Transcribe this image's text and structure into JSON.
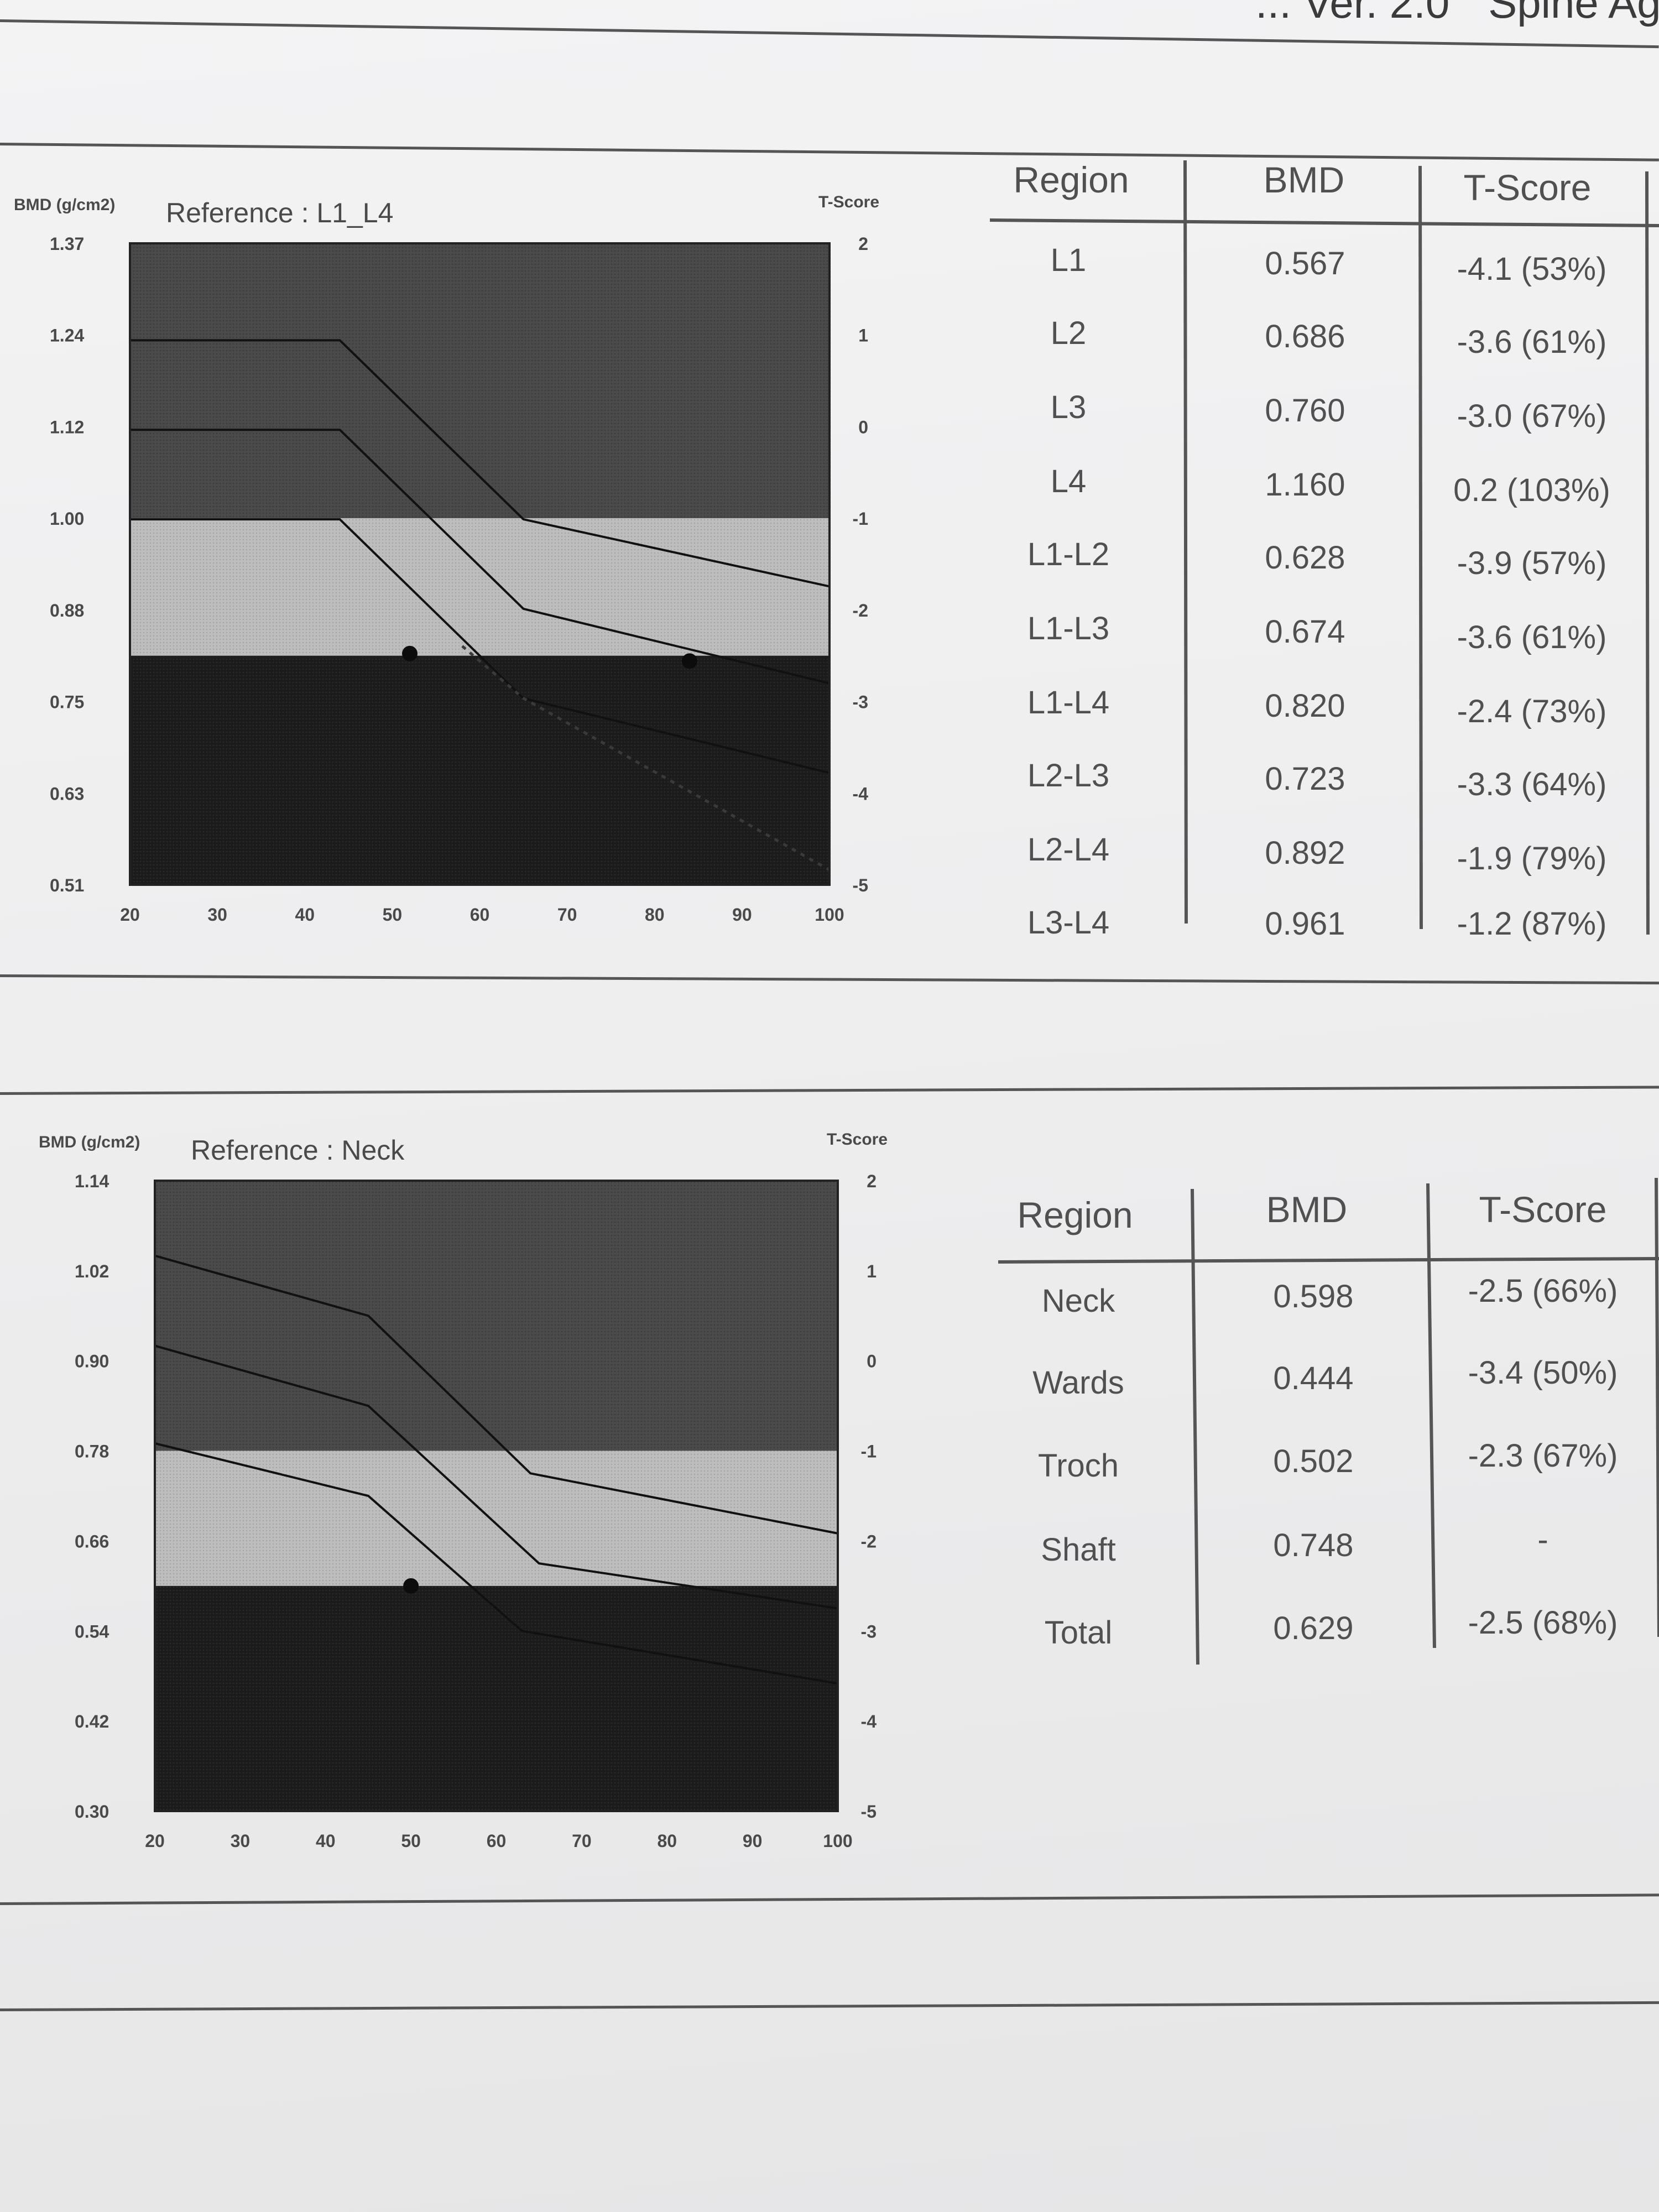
{
  "header": {
    "text_left": "... Ver. 2.0",
    "text_right": "Spine Ag. :"
  },
  "chart_data": [
    {
      "type": "line",
      "title": "Reference : L1_L4",
      "ylabel": "BMD (g/cm2)",
      "y2label": "T-Score",
      "x_ticks": [
        "20",
        "30",
        "40",
        "50",
        "60",
        "70",
        "80",
        "90",
        "100"
      ],
      "xlim": [
        20,
        100
      ],
      "y_ticks": [
        "1.37",
        "1.24",
        "1.12",
        "1.00",
        "0.88",
        "0.75",
        "0.63",
        "0.51"
      ],
      "ylim": [
        0.51,
        1.37
      ],
      "y2_ticks": [
        "2",
        "1",
        "0",
        "-1",
        "-2",
        "-3",
        "-4",
        "-5"
      ],
      "y2lim": [
        -5,
        2
      ],
      "band_edges_tscore": [
        -1,
        -2.5
      ],
      "series": [
        {
          "x": [
            20,
            44,
            65,
            100
          ],
          "y": [
            1.24,
            1.24,
            1.0,
            0.91
          ]
        },
        {
          "x": [
            20,
            44,
            65,
            100
          ],
          "y": [
            1.12,
            1.12,
            0.88,
            0.78
          ]
        },
        {
          "x": [
            20,
            44,
            65,
            100
          ],
          "y": [
            1.0,
            1.0,
            0.76,
            0.66
          ]
        }
      ],
      "dotted_series": {
        "x": [
          58,
          65,
          100
        ],
        "y": [
          0.83,
          0.76,
          0.53
        ]
      },
      "markers": [
        {
          "x": 52,
          "y": 0.82
        },
        {
          "x": 84,
          "y": 0.81
        }
      ]
    },
    {
      "type": "line",
      "title": "Reference : Neck",
      "ylabel": "BMD (g/cm2)",
      "y2label": "T-Score",
      "x_ticks": [
        "20",
        "30",
        "40",
        "50",
        "60",
        "70",
        "80",
        "90",
        "100"
      ],
      "xlim": [
        20,
        100
      ],
      "y_ticks": [
        "1.14",
        "1.02",
        "0.90",
        "0.78",
        "0.66",
        "0.54",
        "0.42",
        "0.30"
      ],
      "ylim": [
        0.3,
        1.14
      ],
      "y2_ticks": [
        "2",
        "1",
        "0",
        "-1",
        "-2",
        "-3",
        "-4",
        "-5"
      ],
      "y2lim": [
        -5,
        2
      ],
      "band_edges_tscore": [
        -1,
        -2.5
      ],
      "series": [
        {
          "x": [
            20,
            45,
            64,
            100
          ],
          "y": [
            1.04,
            0.96,
            0.75,
            0.67
          ]
        },
        {
          "x": [
            20,
            45,
            65,
            100
          ],
          "y": [
            0.92,
            0.84,
            0.63,
            0.57
          ]
        },
        {
          "x": [
            20,
            45,
            63,
            100
          ],
          "y": [
            0.79,
            0.72,
            0.54,
            0.47
          ]
        }
      ],
      "markers": [
        {
          "x": 50,
          "y": 0.6
        }
      ]
    }
  ],
  "table1": {
    "headers": [
      "Region",
      "BMD",
      "T-Score"
    ],
    "rows": [
      [
        "L1",
        "0.567",
        "-4.1 (53%)"
      ],
      [
        "L2",
        "0.686",
        "-3.6 (61%)"
      ],
      [
        "L3",
        "0.760",
        "-3.0 (67%)"
      ],
      [
        "L4",
        "1.160",
        "0.2 (103%)"
      ],
      [
        "L1-L2",
        "0.628",
        "-3.9 (57%)"
      ],
      [
        "L1-L3",
        "0.674",
        "-3.6 (61%)"
      ],
      [
        "L1-L4",
        "0.820",
        "-2.4 (73%)"
      ],
      [
        "L2-L3",
        "0.723",
        "-3.3 (64%)"
      ],
      [
        "L2-L4",
        "0.892",
        "-1.9 (79%)"
      ],
      [
        "L3-L4",
        "0.961",
        "-1.2 (87%)"
      ]
    ]
  },
  "table2": {
    "headers": [
      "Region",
      "BMD",
      "T-Score"
    ],
    "rows": [
      [
        "Neck",
        "0.598",
        "-2.5 (66%)"
      ],
      [
        "Wards",
        "0.444",
        "-3.4 (50%)"
      ],
      [
        "Troch",
        "0.502",
        "-2.3 (67%)"
      ],
      [
        "Shaft",
        "0.748",
        "-"
      ],
      [
        "Total",
        "0.629",
        "-2.5 (68%)"
      ]
    ]
  }
}
